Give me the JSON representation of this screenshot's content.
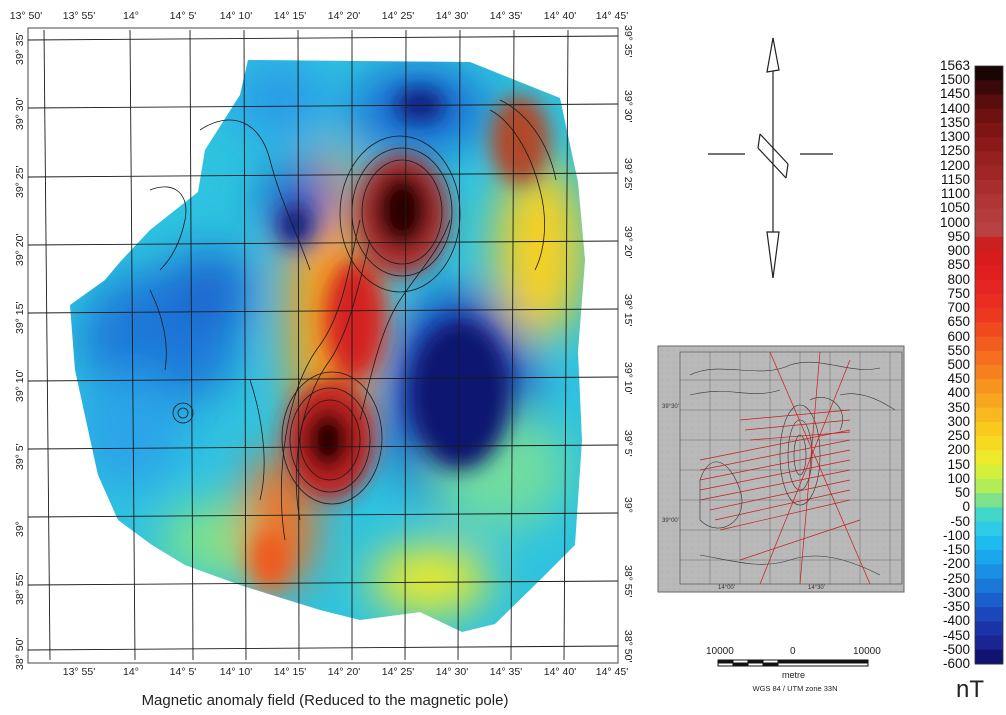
{
  "title": "Magnetic anomaly field (Reduced to the magnetic pole)",
  "unit": "nT",
  "lon_labels_top": [
    "13° 50'",
    "13° 55'",
    "14°",
    "14° 5'",
    "14° 10'",
    "14° 15'",
    "14° 20'",
    "14° 25'",
    "14° 30'",
    "14° 35'",
    "14° 40'",
    "14° 45'"
  ],
  "lon_labels_bottom": [
    "13° 55'",
    "14°",
    "14° 5'",
    "14° 10'",
    "14° 15'",
    "14° 20'",
    "14° 25'",
    "14° 30'",
    "14° 35'",
    "14° 40'",
    "14° 45'"
  ],
  "lat_labels_left": [
    "39° 35'",
    "39° 30'",
    "39° 25'",
    "39° 20'",
    "39° 15'",
    "39° 10'",
    "39° 5'",
    "39°",
    "38° 55'",
    "38° 50'"
  ],
  "lat_labels_right": [
    "39° 35'",
    "39° 30'",
    "39° 25'",
    "39° 20'",
    "39° 15'",
    "39° 10'",
    "39° 5'",
    "39°",
    "38° 55'",
    "38° 50'"
  ],
  "colorbar": {
    "labels": [
      "1563",
      "1500",
      "1450",
      "1400",
      "1350",
      "1300",
      "1250",
      "1200",
      "1150",
      "1100",
      "1050",
      "1000",
      "950",
      "900",
      "850",
      "800",
      "750",
      "700",
      "650",
      "600",
      "550",
      "500",
      "450",
      "400",
      "350",
      "300",
      "250",
      "200",
      "150",
      "100",
      "50",
      "0",
      "-50",
      "-100",
      "-150",
      "-200",
      "-250",
      "-300",
      "-350",
      "-400",
      "-450",
      "-500",
      "-600"
    ],
    "colors": [
      "#1a0505",
      "#3a0808",
      "#5a0d0d",
      "#6e1111",
      "#7d1515",
      "#8a1a1a",
      "#962020",
      "#a02626",
      "#a82d2d",
      "#b03535",
      "#b53c3c",
      "#b84242",
      "#cc2020",
      "#d81c1c",
      "#e01e1e",
      "#e62424",
      "#ea2c22",
      "#ec3820",
      "#ef4a1e",
      "#f25c1e",
      "#f46e1e",
      "#f6801e",
      "#f7941e",
      "#f8a61e",
      "#f9b81e",
      "#f9ca1e",
      "#f7da20",
      "#ecea2a",
      "#d4f03c",
      "#b2ec56",
      "#7fe28a",
      "#3fd8c8",
      "#2ecbe6",
      "#1ebbee",
      "#1aa6ec",
      "#1a90e4",
      "#1a78d8",
      "#1a5fcc",
      "#1a48bc",
      "#1a34a8",
      "#1a2492",
      "#0f1470"
    ]
  },
  "scale_bar": {
    "left_label": "10000",
    "center_label": "0",
    "right_label": "10000",
    "unit": "metre",
    "projection": "WGS 84 / UTM zone 33N"
  },
  "inset": {
    "lat_labels": [
      "39°30'",
      "39°00'"
    ],
    "lon_labels": [
      "14°00'",
      "14°30'"
    ]
  }
}
